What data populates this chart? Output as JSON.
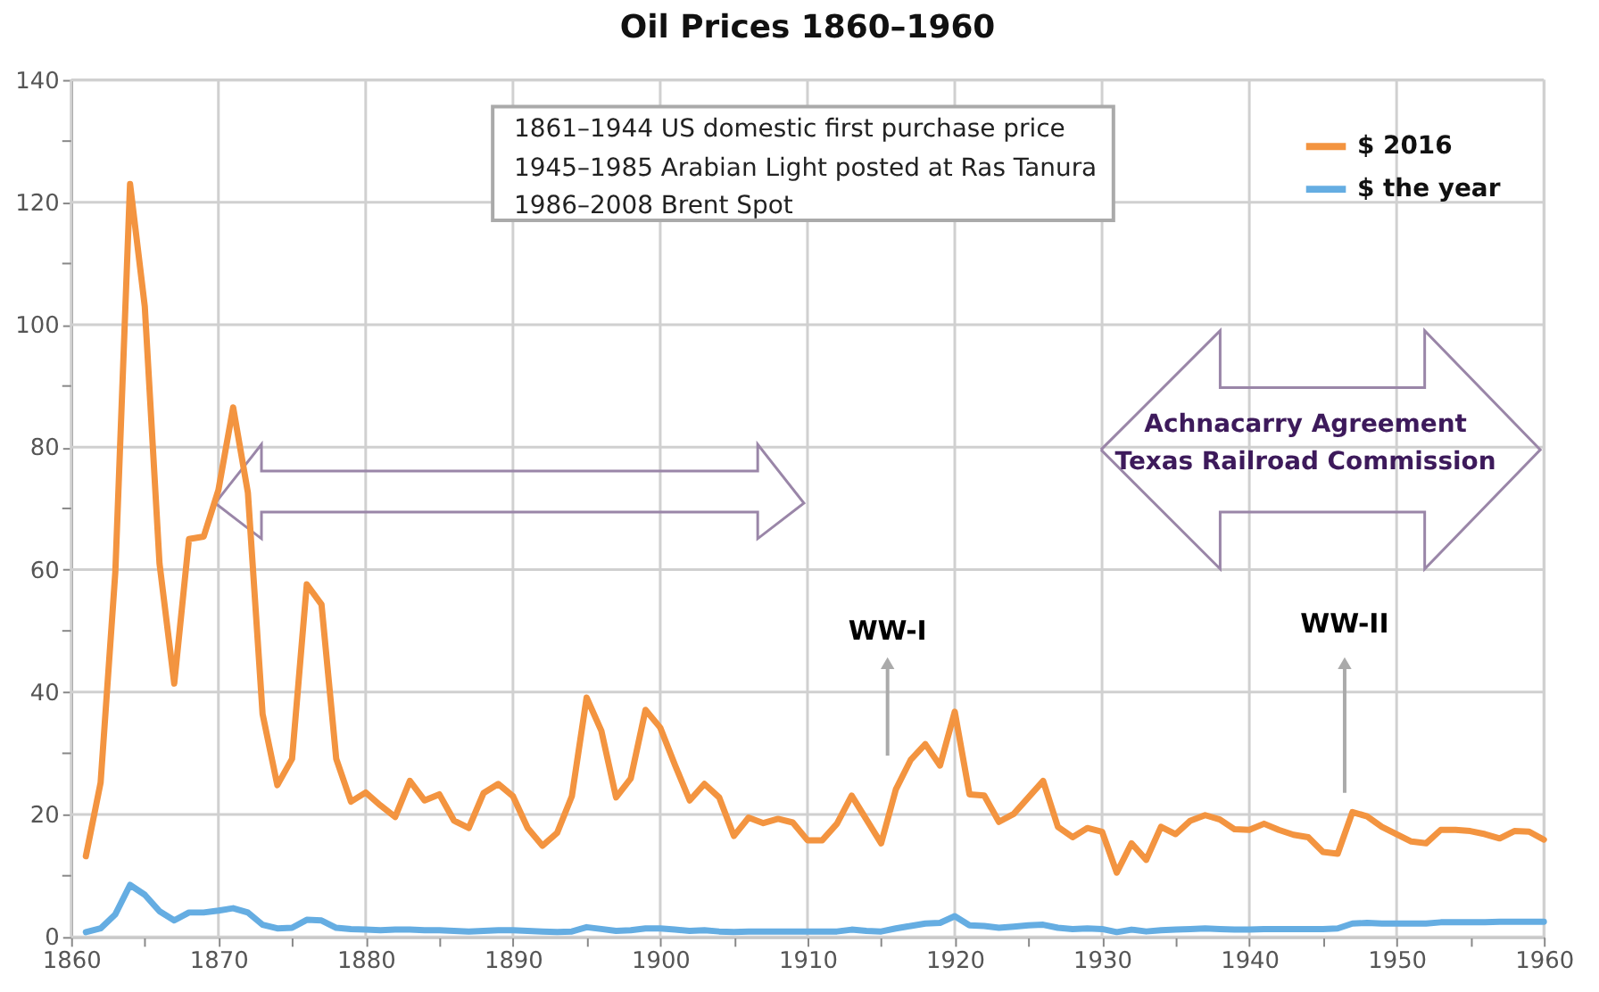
{
  "chart_data": {
    "type": "line",
    "title": "Oil Prices 1860–1960",
    "x": [
      1861,
      1862,
      1863,
      1864,
      1865,
      1866,
      1867,
      1868,
      1869,
      1870,
      1871,
      1872,
      1873,
      1874,
      1875,
      1876,
      1877,
      1878,
      1879,
      1880,
      1881,
      1882,
      1883,
      1884,
      1885,
      1886,
      1887,
      1888,
      1889,
      1890,
      1891,
      1892,
      1893,
      1894,
      1895,
      1896,
      1897,
      1898,
      1899,
      1900,
      1901,
      1902,
      1903,
      1904,
      1905,
      1906,
      1907,
      1908,
      1909,
      1910,
      1911,
      1912,
      1913,
      1914,
      1915,
      1916,
      1917,
      1918,
      1919,
      1920,
      1921,
      1922,
      1923,
      1924,
      1925,
      1926,
      1927,
      1928,
      1929,
      1930,
      1931,
      1932,
      1933,
      1934,
      1935,
      1936,
      1937,
      1938,
      1939,
      1940,
      1941,
      1942,
      1943,
      1944,
      1945,
      1946,
      1947,
      1948,
      1949,
      1950,
      1951,
      1952,
      1953,
      1954,
      1955,
      1956,
      1957,
      1958,
      1959,
      1960
    ],
    "series": [
      {
        "name": "$ 2016",
        "color": "#f39440",
        "values": [
          13.2,
          25.2,
          59.6,
          123,
          103,
          61,
          41.4,
          65,
          65.4,
          73,
          86.5,
          72.6,
          36.4,
          24.8,
          29.1,
          57.6,
          54.3,
          29.1,
          22.1,
          23.6,
          21.5,
          19.6,
          25.5,
          22.3,
          23.3,
          19,
          17.8,
          23.5,
          25,
          23,
          17.8,
          14.9,
          17,
          23,
          39.1,
          33.7,
          22.8,
          25.9,
          37.1,
          34.2,
          28.1,
          22.3,
          25,
          22.8,
          16.5,
          19.5,
          18.6,
          19.3,
          18.7,
          15.8,
          15.8,
          18.5,
          23.1,
          19.2,
          15.3,
          24.1,
          28.9,
          31.5,
          28,
          36.8,
          23.3,
          23.1,
          18.8,
          20.1,
          22.8,
          25.5,
          18,
          16.3,
          17.8,
          17.2,
          10.5,
          15.3,
          12.6,
          18,
          16.8,
          19,
          19.9,
          19.2,
          17.6,
          17.5,
          18.5,
          17.5,
          16.7,
          16.3,
          13.9,
          13.6,
          20.4,
          19.7,
          18,
          16.8,
          15.6,
          15.3,
          17.5,
          17.5,
          17.3,
          16.8,
          16.1,
          17.3,
          17.2,
          15.9
        ]
      },
      {
        "name": "$ the year",
        "color": "#65ade2",
        "values": [
          0.8,
          1.4,
          3.7,
          8.5,
          6.9,
          4.2,
          2.7,
          4.0,
          4.0,
          4.3,
          4.7,
          4.0,
          2.0,
          1.4,
          1.5,
          2.8,
          2.7,
          1.5,
          1.3,
          1.2,
          1.1,
          1.2,
          1.2,
          1.1,
          1.1,
          1.0,
          0.9,
          1.0,
          1.1,
          1.1,
          1.0,
          0.9,
          0.8,
          0.9,
          1.6,
          1.3,
          1.0,
          1.1,
          1.4,
          1.4,
          1.2,
          1.0,
          1.1,
          0.9,
          0.8,
          0.9,
          0.9,
          0.9,
          0.9,
          0.9,
          0.9,
          0.9,
          1.2,
          1.0,
          0.9,
          1.4,
          1.8,
          2.2,
          2.3,
          3.4,
          1.9,
          1.8,
          1.5,
          1.7,
          1.9,
          2.0,
          1.5,
          1.3,
          1.4,
          1.3,
          0.8,
          1.2,
          0.9,
          1.1,
          1.2,
          1.3,
          1.4,
          1.3,
          1.2,
          1.2,
          1.3,
          1.3,
          1.3,
          1.3,
          1.3,
          1.4,
          2.2,
          2.3,
          2.2,
          2.2,
          2.2,
          2.2,
          2.4,
          2.4,
          2.4,
          2.4,
          2.5,
          2.5,
          2.5,
          2.5
        ]
      }
    ],
    "xlim": [
      1860,
      1960
    ],
    "xticks": [
      1860,
      {
        "value": 1865,
        "label": null
      },
      1870,
      {
        "value": 1875,
        "label": null
      },
      1880,
      {
        "value": 1885,
        "label": null
      },
      1890,
      {
        "value": 1895,
        "label": null
      },
      1900,
      {
        "value": 1905,
        "label": null
      },
      1910,
      {
        "value": 1915,
        "label": null
      },
      1920,
      {
        "value": 1925,
        "label": null
      },
      1930,
      {
        "value": 1935,
        "label": null
      },
      1940,
      {
        "value": 1945,
        "label": null
      },
      1950,
      {
        "value": 1955,
        "label": null
      },
      1960
    ],
    "ylim": [
      0,
      140
    ],
    "yticks": [
      0,
      {
        "value": 10,
        "label": null
      },
      20,
      {
        "value": 30,
        "label": null
      },
      40,
      {
        "value": 50,
        "label": null
      },
      60,
      {
        "value": 70,
        "label": null
      },
      80,
      {
        "value": 90,
        "label": null
      },
      100,
      {
        "value": 110,
        "label": null
      },
      120,
      {
        "value": 130,
        "label": null
      },
      140
    ],
    "annotations": [
      "1861–1944 US domestic first purchase price",
      "1945–1985 Arabian Light posted at Ras Tanura",
      "1986–2008 Brent Spot",
      "WW-I",
      "WW-II",
      "Achnacarry Agreement",
      "Texas Railroad Commission"
    ],
    "grid": true,
    "legend": "top right",
    "marker": "none",
    "line_style": "solid"
  }
}
